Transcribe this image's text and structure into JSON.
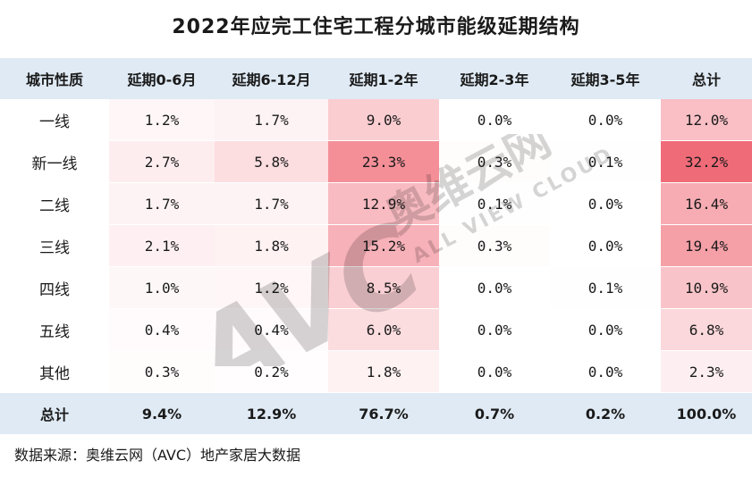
{
  "title": "2022年应完工住宅工程分城市能级延期结构",
  "source": "数据来源：奥维云网（AVC）地产家居大数据",
  "watermark": {
    "logo_text": "AVC",
    "cn_text": "奥维云网",
    "en_text": "ALL VIEW CLOUD"
  },
  "colors": {
    "header_bg": "#dfeaf4",
    "heat_low": "#ffffff",
    "heat_high": "#f06b78"
  },
  "chart_data": {
    "type": "heatmap",
    "title": "2022年应完工住宅工程分城市能级延期结构",
    "corner_label": "城市性质",
    "columns": [
      "延期0-6月",
      "延期6-12月",
      "延期1-2年",
      "延期2-3年",
      "延期3-5年",
      "总计"
    ],
    "rows": [
      {
        "label": "一线",
        "values": [
          "1.2%",
          "1.7%",
          "9.0%",
          "0.0%",
          "0.0%",
          "12.0%"
        ],
        "nums": [
          1.2,
          1.7,
          9.0,
          0.0,
          0.0,
          12.0
        ]
      },
      {
        "label": "新一线",
        "values": [
          "2.7%",
          "5.8%",
          "23.3%",
          "0.3%",
          "0.1%",
          "32.2%"
        ],
        "nums": [
          2.7,
          5.8,
          23.3,
          0.3,
          0.1,
          32.2
        ]
      },
      {
        "label": "二线",
        "values": [
          "1.7%",
          "1.7%",
          "12.9%",
          "0.1%",
          "0.0%",
          "16.4%"
        ],
        "nums": [
          1.7,
          1.7,
          12.9,
          0.1,
          0.0,
          16.4
        ]
      },
      {
        "label": "三线",
        "values": [
          "2.1%",
          "1.8%",
          "15.2%",
          "0.3%",
          "0.0%",
          "19.4%"
        ],
        "nums": [
          2.1,
          1.8,
          15.2,
          0.3,
          0.0,
          19.4
        ]
      },
      {
        "label": "四线",
        "values": [
          "1.0%",
          "1.2%",
          "8.5%",
          "0.0%",
          "0.1%",
          "10.9%"
        ],
        "nums": [
          1.0,
          1.2,
          8.5,
          0.0,
          0.1,
          10.9
        ]
      },
      {
        "label": "五线",
        "values": [
          "0.4%",
          "0.4%",
          "6.0%",
          "0.0%",
          "0.0%",
          "6.8%"
        ],
        "nums": [
          0.4,
          0.4,
          6.0,
          0.0,
          0.0,
          6.8
        ]
      },
      {
        "label": "其他",
        "values": [
          "0.3%",
          "0.2%",
          "1.8%",
          "0.0%",
          "0.0%",
          "2.3%"
        ],
        "nums": [
          0.3,
          0.2,
          1.8,
          0.0,
          0.0,
          2.3
        ]
      }
    ],
    "total_row": {
      "label": "总计",
      "values": [
        "9.4%",
        "12.9%",
        "76.7%",
        "0.7%",
        "0.2%",
        "100.0%"
      ]
    },
    "color_scale_max": 32.2
  }
}
